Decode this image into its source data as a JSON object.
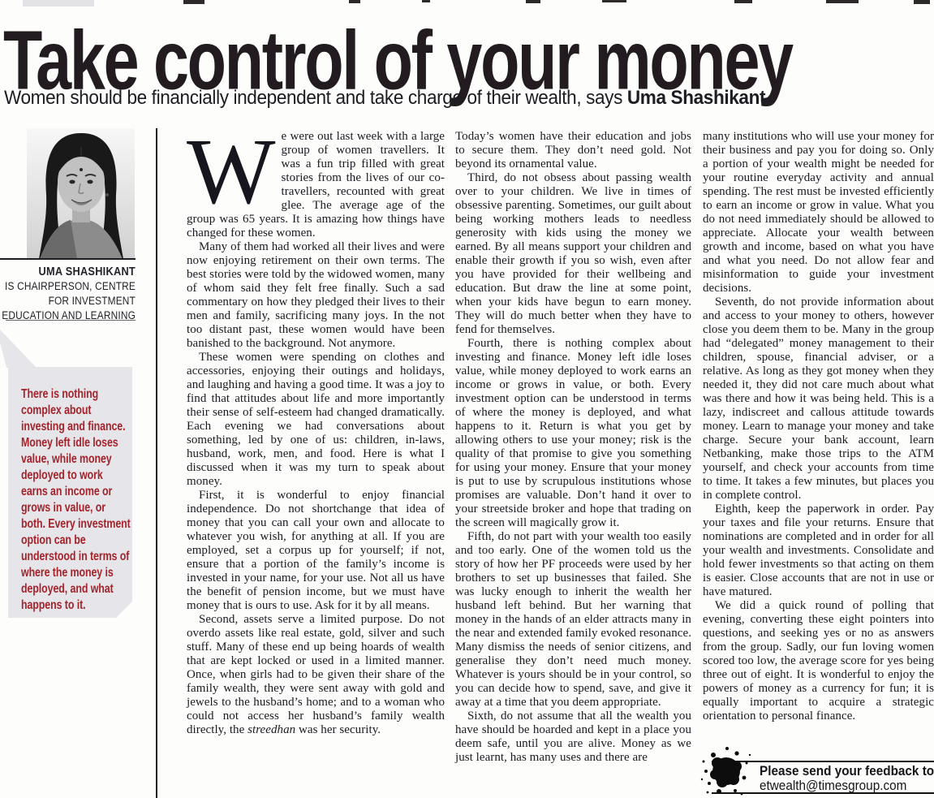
{
  "header": {
    "title": "Take control of your money",
    "subtitle_prefix": "Women should be financially independent and take charge of their wealth, says ",
    "subtitle_author": "Uma Shashikant."
  },
  "author": {
    "name": "UMA SHASHIKANT",
    "role": "IS CHAIRPERSON, CENTRE\nFOR INVESTMENT\nEDUCATION AND LEARNING"
  },
  "pull_quote": {
    "text": "There is nothing complex about investing and finance. Money left idle loses value, while money deployed to work earns an income or grows in value, or both. Every investment option can be understood in terms of where the money is deployed, and what happens to it.",
    "text_color": "#a4232b",
    "box_color": "#e6e6ea"
  },
  "article": {
    "columns": [
      {
        "paragraphs": [
          {
            "dropcap": "W",
            "noindent": true,
            "segments": [
              {
                "t": "e were out last week with a large group of women travellers. It was a fun trip filled with great stories from the lives of our co-travellers, recounted with great glee. The average age of the group was 65 years. It is amazing how things have changed for these women."
              }
            ]
          },
          {
            "segments": [
              {
                "t": "Many of them had worked all their lives and were now enjoying retirement on their own terms. The best stories were told by the widowed women, many of whom said they felt free finally. Such a sad commentary on how they pledged their lives to their men and family, sacrificing many joys. In the not too distant past, these women would have been banished to the background. Not anymore."
              }
            ]
          },
          {
            "segments": [
              {
                "t": "These women were spending on clothes and accessories, enjoying their outings and holidays, and laughing and having a good time. It was a joy to find that attitudes about life and more importantly their sense of self-esteem had changed dramatically. Each evening we had conversations about something, led by one of us: children, in-laws, husband, work, men, and food. Here is what I discussed when it was my turn to speak about money."
              }
            ]
          },
          {
            "segments": [
              {
                "t": "First, it is wonderful to enjoy financial independence. Do not shortchange that idea of money that you can call your own and allocate to whatever you wish, for anything at all. If you are employed, set a corpus up for yourself; if not, ensure that a portion of the family’s income is invested in your name, for your use.  Not all us have the benefit of pension income, but we must have money that is ours to use. Ask for it by all means."
              }
            ]
          },
          {
            "segments": [
              {
                "t": "Second, assets serve a limited purpose. Do not overdo assets like real estate, gold, silver and such stuff.  Many of these end up being hoards of wealth that are kept locked or used in a limited manner. Once, when girls had to be given their share of the family wealth, they were sent away with gold and jewels to the husband’s home; and to a woman who could not access her husband’s family wealth directly, the "
              },
              {
                "t": "streedhan",
                "italic": true
              },
              {
                "t": " was her security."
              }
            ]
          }
        ]
      },
      {
        "paragraphs": [
          {
            "noindent": true,
            "segments": [
              {
                "t": "Today’s women have their education and jobs to secure them. They don’t need gold. Not beyond its ornamental value."
              }
            ]
          },
          {
            "segments": [
              {
                "t": "Third, do not obsess about passing wealth over to your children. We live in times of obsessive parenting. Sometimes, our guilt about being working mothers leads to needless generosity with kids using the money we earned. By all means support your children and enable their growth if you so wish, even after you have provided for their wellbeing and education. But draw the line at some point, when your kids have begun to earn money. They will do much better when they have to fend for themselves."
              }
            ]
          },
          {
            "segments": [
              {
                "t": "Fourth, there is nothing complex about investing and finance. Money left idle loses value, while money deployed to work earns an income or grows in value, or both. Every investment option can be understood in terms of where the money is deployed, and what happens to it. Return is what you get by allowing others to use your money; risk is the quality of that promise to give you something for using your money.  Ensure that your money is put to use by scrupulous institutions whose promises are valuable. Don’t hand it over to your streetside broker and hope that trading on the screen will magically grow it."
              }
            ]
          },
          {
            "segments": [
              {
                "t": "Fifth, do not part with your wealth too easily and too early. One of the women told us the story of how her PF proceeds were used by her brothers to set up businesses that failed. She was lucky enough to inherit the wealth her husband left behind. But her warning that money in the hands of an elder attracts many in the near and extended family evoked resonance. Many dismiss the needs of senior citizens, and generalise they don’t need much money. Whatever is yours should be in your control, so you can decide how to spend, save, and give it away at a time that you deem appropriate."
              }
            ]
          },
          {
            "segments": [
              {
                "t": "Sixth, do not assume that all the wealth you have should be hoarded and kept in a place you deem safe, until you are alive. Money as we just learnt, has many uses and there are"
              }
            ]
          }
        ]
      },
      {
        "paragraphs": [
          {
            "noindent": true,
            "segments": [
              {
                "t": "many institutions who will use your money for their business and pay you for doing so. Only a portion of your wealth might be needed for your routine everyday activity and annual spending. The rest must be invested efficiently to earn an income or grow in value. What you do not need immediately should be allowed to appreciate. Allocate your wealth between growth and income, based on what you have and what you need. Do not allow fear and misinformation to guide your investment decisions."
              }
            ]
          },
          {
            "segments": [
              {
                "t": "Seventh, do not provide information about and access to your money to others, however close you deem them to be. Many in the group had “delegated” money management to their children, spouse, financial adviser, or a relative. As long as they got money when they needed it, they did not care much about what was there and how it was being held. This is a lazy, indiscreet and callous attitude towards money. Learn to manage your money and take charge. Secure your bank account, learn Netbanking, make those trips to the ATM yourself, and check your accounts from time to time. It takes a few minutes, but places you in complete control."
              }
            ]
          },
          {
            "segments": [
              {
                "t": "Eighth, keep the paperwork in order. Pay your taxes and file your returns. Ensure that nominations are completed and in order for all your wealth and investments. Consolidate and hold fewer investments so that acting on them is easier. Close accounts that are not in use or have matured."
              }
            ]
          },
          {
            "segments": [
              {
                "t": "We did a quick round of polling that evening, converting these eight pointers into questions, and seeking yes or no as answers from the group. Sadly, our fun loving women scored too low, the average score for yes being three out of eight. It is wonderful to enjoy the powers of money as a currency for fun; it is equally important to acquire a strategic orientation to personal finance."
              }
            ]
          }
        ]
      }
    ]
  },
  "feedback": {
    "line1": "Please send your feedback to",
    "line2": "etwealth@timesgroup.com"
  }
}
